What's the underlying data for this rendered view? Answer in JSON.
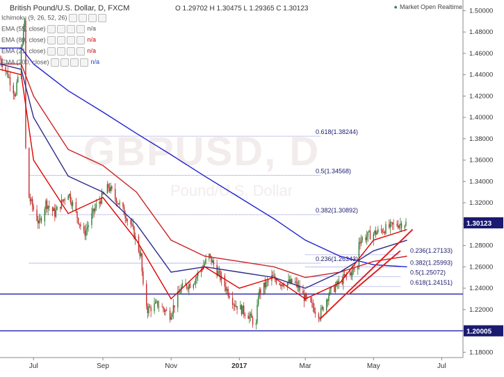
{
  "header": {
    "symbol_title": "British Pound/U.S. Dollar, D, FXCM",
    "ohlc": "O 1.29702 H 1.30475 L 1.29365 C 1.30123",
    "market_status": "Market Open  Realtime"
  },
  "watermark": {
    "main": "GBPUSD, D",
    "sub": "Pound/U.S. Dollar"
  },
  "indicators": [
    {
      "label": "Ichimoku (9, 26, 52, 26)",
      "value": "",
      "color": "#555555"
    },
    {
      "label": "EMA (55, close)",
      "value": "n/a",
      "color": "#555555"
    },
    {
      "label": "EMA (89, close)",
      "value": "n/a",
      "color": "#cc0000"
    },
    {
      "label": "EMA (21, close)",
      "value": "n/a",
      "color": "#cc0000"
    },
    {
      "label": "EMA (200, close)",
      "value": "n/a",
      "color": "#1f3fbf"
    }
  ],
  "colors": {
    "up": "#2e7d32",
    "down": "#c62828",
    "ema21": "#e10000",
    "ema55": "#2a2a8a",
    "ema89": "#cc2222",
    "ema200": "#2020d0",
    "hline": "#2a2ab0",
    "trend": "#e02020",
    "fib": "#6666cc",
    "last_price_bg": "#1a1a70"
  },
  "chart_data": {
    "type": "candlestick",
    "title": "British Pound/U.S. Dollar, D, FXCM",
    "ylim": [
      1.175,
      1.51
    ],
    "x_range": [
      "2016-06-01",
      "2017-07-20"
    ],
    "y_ticks": [
      1.18,
      1.2,
      1.22,
      1.24,
      1.26,
      1.28,
      1.3,
      1.32,
      1.34,
      1.36,
      1.38,
      1.4,
      1.42,
      1.44,
      1.46,
      1.48,
      1.5
    ],
    "y_tick_labels": [
      "1.18000",
      "1.20000",
      "1.22000",
      "1.24000",
      "1.26000",
      "1.28000",
      "1.30000",
      "1.32000",
      "1.34000",
      "1.36000",
      "1.38000",
      "1.40000",
      "1.42000",
      "1.44000",
      "1.46000",
      "1.48000",
      "1.50000"
    ],
    "x_ticks": [
      {
        "date": "2016-07-01",
        "label": "Jul",
        "bold": false
      },
      {
        "date": "2016-09-01",
        "label": "Sep",
        "bold": false
      },
      {
        "date": "2016-11-01",
        "label": "Nov",
        "bold": false
      },
      {
        "date": "2017-01-01",
        "label": "2017",
        "bold": true
      },
      {
        "date": "2017-03-01",
        "label": "Mar",
        "bold": false
      },
      {
        "date": "2017-05-01",
        "label": "May",
        "bold": false
      },
      {
        "date": "2017-07-01",
        "label": "Jul",
        "bold": false
      }
    ],
    "last_price": {
      "value": 1.30123,
      "label": "1.30123"
    },
    "close_path": [
      [
        "2016-06-01",
        1.455
      ],
      [
        "2016-06-08",
        1.44
      ],
      [
        "2016-06-15",
        1.42
      ],
      [
        "2016-06-23",
        1.49
      ],
      [
        "2016-06-24",
        1.37
      ],
      [
        "2016-06-27",
        1.325
      ],
      [
        "2016-07-06",
        1.3
      ],
      [
        "2016-07-12",
        1.32
      ],
      [
        "2016-07-20",
        1.31
      ],
      [
        "2016-08-01",
        1.33
      ],
      [
        "2016-08-15",
        1.29
      ],
      [
        "2016-08-25",
        1.315
      ],
      [
        "2016-09-06",
        1.335
      ],
      [
        "2016-09-15",
        1.32
      ],
      [
        "2016-09-26",
        1.3
      ],
      [
        "2016-10-05",
        1.27
      ],
      [
        "2016-10-07",
        1.24
      ],
      [
        "2016-10-11",
        1.22
      ],
      [
        "2016-10-20",
        1.225
      ],
      [
        "2016-10-31",
        1.215
      ],
      [
        "2016-11-10",
        1.24
      ],
      [
        "2016-11-20",
        1.245
      ],
      [
        "2016-12-05",
        1.27
      ],
      [
        "2016-12-15",
        1.25
      ],
      [
        "2016-12-28",
        1.225
      ],
      [
        "2017-01-09",
        1.215
      ],
      [
        "2017-01-16",
        1.205
      ],
      [
        "2017-01-18",
        1.235
      ],
      [
        "2017-01-30",
        1.25
      ],
      [
        "2017-02-07",
        1.245
      ],
      [
        "2017-02-20",
        1.245
      ],
      [
        "2017-03-01",
        1.23
      ],
      [
        "2017-03-14",
        1.215
      ],
      [
        "2017-03-22",
        1.235
      ],
      [
        "2017-04-05",
        1.25
      ],
      [
        "2017-04-17",
        1.26
      ],
      [
        "2017-04-18",
        1.285
      ],
      [
        "2017-04-28",
        1.29
      ],
      [
        "2017-05-10",
        1.295
      ],
      [
        "2017-05-22",
        1.3
      ],
      [
        "2017-05-31",
        1.30123
      ]
    ],
    "moving_averages": [
      {
        "name": "EMA 200",
        "key": "ema200",
        "points": [
          [
            "2016-06-01",
            1.465
          ],
          [
            "2016-06-20",
            1.465
          ],
          [
            "2016-07-01",
            1.45
          ],
          [
            "2016-08-01",
            1.425
          ],
          [
            "2016-09-01",
            1.405
          ],
          [
            "2016-10-01",
            1.385
          ],
          [
            "2016-11-01",
            1.365
          ],
          [
            "2016-12-01",
            1.345
          ],
          [
            "2017-01-01",
            1.325
          ],
          [
            "2017-02-01",
            1.305
          ],
          [
            "2017-03-01",
            1.285
          ],
          [
            "2017-04-01",
            1.27
          ],
          [
            "2017-05-01",
            1.262
          ],
          [
            "2017-05-31",
            1.26
          ]
        ]
      },
      {
        "name": "EMA 89",
        "key": "ema89",
        "points": [
          [
            "2016-06-01",
            1.45
          ],
          [
            "2016-06-20",
            1.45
          ],
          [
            "2016-07-01",
            1.42
          ],
          [
            "2016-08-01",
            1.37
          ],
          [
            "2016-09-01",
            1.355
          ],
          [
            "2016-10-01",
            1.33
          ],
          [
            "2016-11-01",
            1.285
          ],
          [
            "2016-12-01",
            1.27
          ],
          [
            "2017-01-01",
            1.265
          ],
          [
            "2017-02-01",
            1.26
          ],
          [
            "2017-03-01",
            1.25
          ],
          [
            "2017-04-01",
            1.255
          ],
          [
            "2017-05-01",
            1.265
          ],
          [
            "2017-05-31",
            1.27
          ]
        ]
      },
      {
        "name": "EMA 55",
        "key": "ema55",
        "points": [
          [
            "2016-06-01",
            1.45
          ],
          [
            "2016-06-20",
            1.445
          ],
          [
            "2016-07-01",
            1.4
          ],
          [
            "2016-08-01",
            1.345
          ],
          [
            "2016-09-01",
            1.33
          ],
          [
            "2016-10-01",
            1.3
          ],
          [
            "2016-11-01",
            1.255
          ],
          [
            "2016-12-01",
            1.26
          ],
          [
            "2017-01-01",
            1.255
          ],
          [
            "2017-02-01",
            1.25
          ],
          [
            "2017-03-01",
            1.24
          ],
          [
            "2017-04-01",
            1.255
          ],
          [
            "2017-05-01",
            1.275
          ],
          [
            "2017-05-31",
            1.285
          ]
        ]
      },
      {
        "name": "EMA 21",
        "key": "ema21",
        "points": [
          [
            "2016-06-01",
            1.445
          ],
          [
            "2016-06-20",
            1.44
          ],
          [
            "2016-07-01",
            1.36
          ],
          [
            "2016-08-01",
            1.31
          ],
          [
            "2016-09-01",
            1.325
          ],
          [
            "2016-10-01",
            1.285
          ],
          [
            "2016-11-01",
            1.23
          ],
          [
            "2016-12-01",
            1.26
          ],
          [
            "2017-01-01",
            1.24
          ],
          [
            "2017-02-01",
            1.25
          ],
          [
            "2017-03-01",
            1.23
          ],
          [
            "2017-04-01",
            1.245
          ],
          [
            "2017-05-01",
            1.285
          ],
          [
            "2017-05-31",
            1.295
          ]
        ]
      }
    ],
    "horizontal_lines": [
      {
        "price": 1.20005,
        "label": "1.20005"
      },
      {
        "price": 1.2345,
        "label": ""
      }
    ],
    "fibonacci_sets": [
      {
        "from": "2016-06-27",
        "to": "2017-03-15",
        "levels": [
          {
            "price": 1.38244,
            "label": "0.618(1.38244)"
          },
          {
            "price": 1.34568,
            "label": "0.5(1.34568)"
          },
          {
            "price": 1.30892,
            "label": "0.382(1.30892)"
          },
          {
            "price": 1.26343,
            "label": "0.236(1.26343)"
          }
        ]
      },
      {
        "from": "2017-03-01",
        "to": "2017-05-25",
        "levels": [
          {
            "price": 1.27133,
            "label": "0.236(1.27133)"
          },
          {
            "price": 1.25993,
            "label": "0.382(1.25993)"
          },
          {
            "price": 1.25072,
            "label": "0.5(1.25072)"
          },
          {
            "price": 1.24151,
            "label": "0.618(1.24151)"
          }
        ]
      }
    ],
    "trend_lines": [
      {
        "from": [
          "2017-03-14",
          1.211
        ],
        "to": [
          "2017-06-05",
          1.295
        ]
      },
      {
        "from": [
          "2017-04-10",
          1.235
        ],
        "to": [
          "2017-05-25",
          1.275
        ]
      }
    ]
  }
}
